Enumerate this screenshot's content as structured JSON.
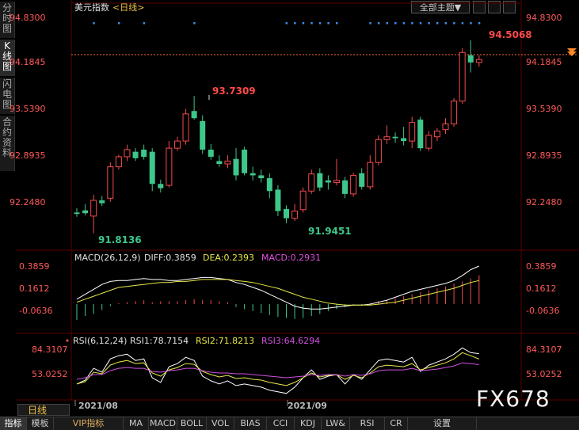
{
  "sidebar": {
    "tabs": [
      {
        "label": "分时图",
        "active": false
      },
      {
        "label": "K线图",
        "active": true
      },
      {
        "label": "闪电图",
        "active": false
      },
      {
        "label": "合约资料",
        "active": false
      }
    ]
  },
  "header": {
    "instrument": "美元指数",
    "period_tag": "<日线>",
    "theme_dropdown": "全部主题▼"
  },
  "price_axis": {
    "labels": [
      "94.8300",
      "94.1845",
      "93.5390",
      "92.8935",
      "92.2480"
    ],
    "current_price": "94.1845"
  },
  "annotations": {
    "high": "93.7309",
    "low1": "91.8136",
    "low2": "91.9451",
    "recent_high": "94.5068"
  },
  "macd": {
    "name": "MACD(26,12,9)",
    "diff": "DIFF:0.3859",
    "dea": "DEA:0.2393",
    "macd": "MACD:0.2931",
    "axis_labels": [
      "0.3859",
      "0.1612",
      "-0.0636"
    ]
  },
  "rsi": {
    "name": "RSI(6,12,24)",
    "rsi1": "RSI1:78.7154",
    "rsi2": "RSI2:71.8213",
    "rsi3": "RSI3:64.6294",
    "axis_labels": [
      "84.3107",
      "53.0252"
    ]
  },
  "date_axis": {
    "labels": [
      "2021/08",
      "2021/09"
    ]
  },
  "period_badge": "日线",
  "watermark": "FX678",
  "toolbar": {
    "tabs": [
      "指标",
      "模板",
      "VIP指标",
      "MA",
      "MACD",
      "BOLL",
      "VOL",
      "BIAS",
      "CCI",
      "KDJ",
      "LW&",
      "RSI",
      "CR",
      "设置"
    ]
  },
  "colors": {
    "up": "#f24b4b",
    "down": "#3ec78b",
    "diff_line": "#ffffff",
    "dea_line": "#e8e84a",
    "macd_label": "#e050e0",
    "rsi1_line": "#ffffff",
    "rsi2_line": "#e8e84a",
    "rsi3_line": "#d050e0",
    "axis_text": "#ff5a5a",
    "dots": "#3a8ee8"
  },
  "chart_data": {
    "type": "candlestick",
    "instrument": "美元指数",
    "period": "日线",
    "ylim": [
      91.6,
      94.83
    ],
    "dates_marked": [
      "2021/08",
      "2021/09"
    ],
    "candles": [
      {
        "o": 92.1,
        "h": 92.16,
        "l": 92.04,
        "c": 92.08
      },
      {
        "o": 92.13,
        "h": 92.22,
        "l": 92.06,
        "c": 92.09
      },
      {
        "o": 92.05,
        "h": 92.35,
        "l": 91.81,
        "c": 92.27
      },
      {
        "o": 92.27,
        "h": 92.33,
        "l": 92.19,
        "c": 92.23
      },
      {
        "o": 92.3,
        "h": 92.8,
        "l": 92.25,
        "c": 92.74
      },
      {
        "o": 92.74,
        "h": 92.91,
        "l": 92.7,
        "c": 92.88
      },
      {
        "o": 92.88,
        "h": 93.05,
        "l": 92.82,
        "c": 92.98
      },
      {
        "o": 92.95,
        "h": 93.0,
        "l": 92.82,
        "c": 92.86
      },
      {
        "o": 92.98,
        "h": 93.05,
        "l": 92.84,
        "c": 92.88
      },
      {
        "o": 92.95,
        "h": 93.0,
        "l": 92.4,
        "c": 92.5
      },
      {
        "o": 92.5,
        "h": 92.56,
        "l": 92.38,
        "c": 92.44
      },
      {
        "o": 92.48,
        "h": 93.1,
        "l": 92.45,
        "c": 93.0
      },
      {
        "o": 93.0,
        "h": 93.16,
        "l": 92.96,
        "c": 93.1
      },
      {
        "o": 93.1,
        "h": 93.55,
        "l": 93.05,
        "c": 93.48
      },
      {
        "o": 93.52,
        "h": 93.73,
        "l": 93.4,
        "c": 93.42
      },
      {
        "o": 93.38,
        "h": 93.46,
        "l": 92.92,
        "c": 92.98
      },
      {
        "o": 92.98,
        "h": 93.06,
        "l": 92.84,
        "c": 92.88
      },
      {
        "o": 92.82,
        "h": 92.9,
        "l": 92.74,
        "c": 92.78
      },
      {
        "o": 92.78,
        "h": 92.9,
        "l": 92.72,
        "c": 92.82
      },
      {
        "o": 92.85,
        "h": 93.0,
        "l": 92.55,
        "c": 92.62
      },
      {
        "o": 92.98,
        "h": 93.02,
        "l": 92.62,
        "c": 92.65
      },
      {
        "o": 92.65,
        "h": 92.74,
        "l": 92.55,
        "c": 92.62
      },
      {
        "o": 92.62,
        "h": 92.7,
        "l": 92.52,
        "c": 92.58
      },
      {
        "o": 92.58,
        "h": 92.65,
        "l": 92.3,
        "c": 92.4
      },
      {
        "o": 92.42,
        "h": 92.48,
        "l": 92.05,
        "c": 92.12
      },
      {
        "o": 92.15,
        "h": 92.2,
        "l": 91.95,
        "c": 92.02
      },
      {
        "o": 92.02,
        "h": 92.22,
        "l": 91.98,
        "c": 92.12
      },
      {
        "o": 92.14,
        "h": 92.45,
        "l": 92.1,
        "c": 92.4
      },
      {
        "o": 92.4,
        "h": 92.7,
        "l": 92.36,
        "c": 92.64
      },
      {
        "o": 92.65,
        "h": 92.72,
        "l": 92.4,
        "c": 92.45
      },
      {
        "o": 92.55,
        "h": 92.62,
        "l": 92.42,
        "c": 92.52
      },
      {
        "o": 92.52,
        "h": 92.85,
        "l": 92.48,
        "c": 92.55
      },
      {
        "o": 92.55,
        "h": 92.6,
        "l": 92.3,
        "c": 92.36
      },
      {
        "o": 92.36,
        "h": 92.66,
        "l": 92.32,
        "c": 92.62
      },
      {
        "o": 92.65,
        "h": 92.72,
        "l": 92.42,
        "c": 92.46
      },
      {
        "o": 92.46,
        "h": 92.9,
        "l": 92.42,
        "c": 92.8
      },
      {
        "o": 92.8,
        "h": 93.18,
        "l": 92.76,
        "c": 93.12
      },
      {
        "o": 93.12,
        "h": 93.32,
        "l": 93.06,
        "c": 93.16
      },
      {
        "o": 93.16,
        "h": 93.22,
        "l": 93.08,
        "c": 93.14
      },
      {
        "o": 93.14,
        "h": 93.3,
        "l": 93.04,
        "c": 93.1
      },
      {
        "o": 93.1,
        "h": 93.44,
        "l": 93.0,
        "c": 93.36
      },
      {
        "o": 93.4,
        "h": 93.44,
        "l": 92.96,
        "c": 93.0
      },
      {
        "o": 93.0,
        "h": 93.24,
        "l": 92.96,
        "c": 93.18
      },
      {
        "o": 93.16,
        "h": 93.28,
        "l": 93.1,
        "c": 93.24
      },
      {
        "o": 93.26,
        "h": 93.42,
        "l": 93.2,
        "c": 93.34
      },
      {
        "o": 93.34,
        "h": 93.7,
        "l": 93.3,
        "c": 93.66
      },
      {
        "o": 93.66,
        "h": 94.4,
        "l": 93.62,
        "c": 94.34
      },
      {
        "o": 94.3,
        "h": 94.51,
        "l": 94.06,
        "c": 94.2
      },
      {
        "o": 94.2,
        "h": 94.3,
        "l": 94.14,
        "c": 94.24
      }
    ],
    "macd": {
      "ylim": [
        -0.22,
        0.42
      ],
      "diff": [
        0.05,
        0.1,
        0.15,
        0.2,
        0.23,
        0.24,
        0.24,
        0.25,
        0.26,
        0.25,
        0.25,
        0.24,
        0.24,
        0.25,
        0.26,
        0.27,
        0.27,
        0.26,
        0.25,
        0.22,
        0.2,
        0.17,
        0.14,
        0.1,
        0.06,
        0.02,
        -0.02,
        -0.04,
        -0.05,
        -0.05,
        -0.04,
        -0.03,
        -0.02,
        -0.01,
        -0.01,
        0.0,
        0.02,
        0.04,
        0.07,
        0.1,
        0.13,
        0.15,
        0.17,
        0.19,
        0.21,
        0.24,
        0.29,
        0.35,
        0.386
      ],
      "dea": [
        0.02,
        0.05,
        0.08,
        0.11,
        0.14,
        0.17,
        0.18,
        0.19,
        0.2,
        0.21,
        0.22,
        0.22,
        0.23,
        0.23,
        0.24,
        0.25,
        0.25,
        0.25,
        0.25,
        0.24,
        0.23,
        0.22,
        0.2,
        0.18,
        0.16,
        0.13,
        0.1,
        0.07,
        0.05,
        0.03,
        0.01,
        0.0,
        -0.01,
        -0.01,
        -0.01,
        -0.01,
        0.0,
        0.01,
        0.02,
        0.04,
        0.06,
        0.08,
        0.1,
        0.12,
        0.14,
        0.16,
        0.19,
        0.22,
        0.239
      ],
      "hist": [
        -0.16,
        -0.12,
        -0.1,
        -0.06,
        -0.02,
        0.01,
        0.02,
        0.03,
        0.04,
        0.02,
        0.03,
        0.03,
        0.03,
        0.04,
        0.05,
        0.04,
        0.04,
        0.03,
        0.02,
        -0.03,
        -0.05,
        -0.07,
        -0.09,
        -0.11,
        -0.13,
        -0.14,
        -0.15,
        -0.14,
        -0.12,
        -0.1,
        -0.07,
        -0.05,
        -0.03,
        -0.01,
        -0.01,
        0.01,
        0.03,
        0.04,
        0.06,
        0.08,
        0.1,
        0.12,
        0.14,
        0.16,
        0.18,
        0.21,
        0.23,
        0.26,
        0.293
      ]
    },
    "rsi": {
      "ylim": [
        30,
        90
      ],
      "rsi1": [
        40,
        45,
        60,
        55,
        72,
        76,
        78,
        70,
        72,
        48,
        42,
        62,
        66,
        74,
        70,
        50,
        44,
        40,
        44,
        38,
        40,
        38,
        36,
        32,
        30,
        28,
        36,
        48,
        58,
        46,
        50,
        52,
        40,
        52,
        46,
        58,
        70,
        72,
        70,
        68,
        74,
        56,
        64,
        68,
        72,
        78,
        86,
        80,
        78.7
      ],
      "rsi2": [
        40,
        43,
        55,
        53,
        64,
        68,
        70,
        66,
        67,
        54,
        50,
        58,
        61,
        66,
        65,
        56,
        52,
        49,
        51,
        47,
        48,
        46,
        45,
        42,
        40,
        38,
        42,
        48,
        54,
        49,
        51,
        52,
        46,
        51,
        48,
        54,
        62,
        64,
        63,
        62,
        66,
        58,
        61,
        64,
        67,
        72,
        80,
        76,
        71.8
      ],
      "rsi3": [
        46,
        48,
        52,
        52,
        57,
        60,
        61,
        60,
        60,
        56,
        55,
        57,
        58,
        60,
        60,
        57,
        55,
        54,
        54,
        53,
        53,
        52,
        51,
        50,
        49,
        48,
        49,
        50,
        52,
        51,
        52,
        52,
        50,
        52,
        51,
        53,
        57,
        58,
        58,
        58,
        60,
        57,
        58,
        59,
        61,
        63,
        67,
        66,
        64.6
      ]
    }
  }
}
